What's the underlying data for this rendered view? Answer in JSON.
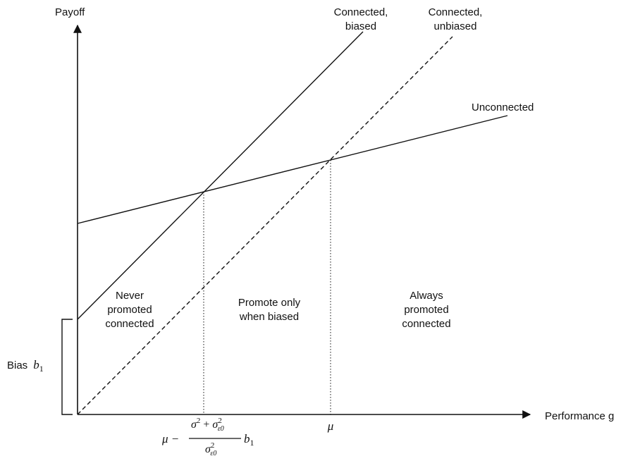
{
  "axes": {
    "y_label": "Payoff",
    "x_label": "Performance g"
  },
  "lines": {
    "connected_biased": [
      "Connected,",
      "biased"
    ],
    "connected_unbiased": [
      "Connected,",
      "unbiased"
    ],
    "unconnected": "Unconnected"
  },
  "regions": {
    "never": [
      "Never",
      "promoted",
      "connected"
    ],
    "promote_biased": [
      "Promote only",
      "when biased"
    ],
    "always": [
      "Always",
      "promoted",
      "connected"
    ]
  },
  "bias": {
    "prefix": "Bias",
    "symbol": "b",
    "subscript": "1"
  },
  "ticks": {
    "mu": "μ",
    "threshold": {
      "lead": "μ −",
      "num_sigma": "σ",
      "num_sup": "2",
      "plus": "+",
      "num_sigma2": "σ",
      "eps": "ε0",
      "den_sigma": "σ",
      "den_sup": "2",
      "den_eps": "ε0",
      "tail_b": "b",
      "tail_sub": "1"
    }
  }
}
